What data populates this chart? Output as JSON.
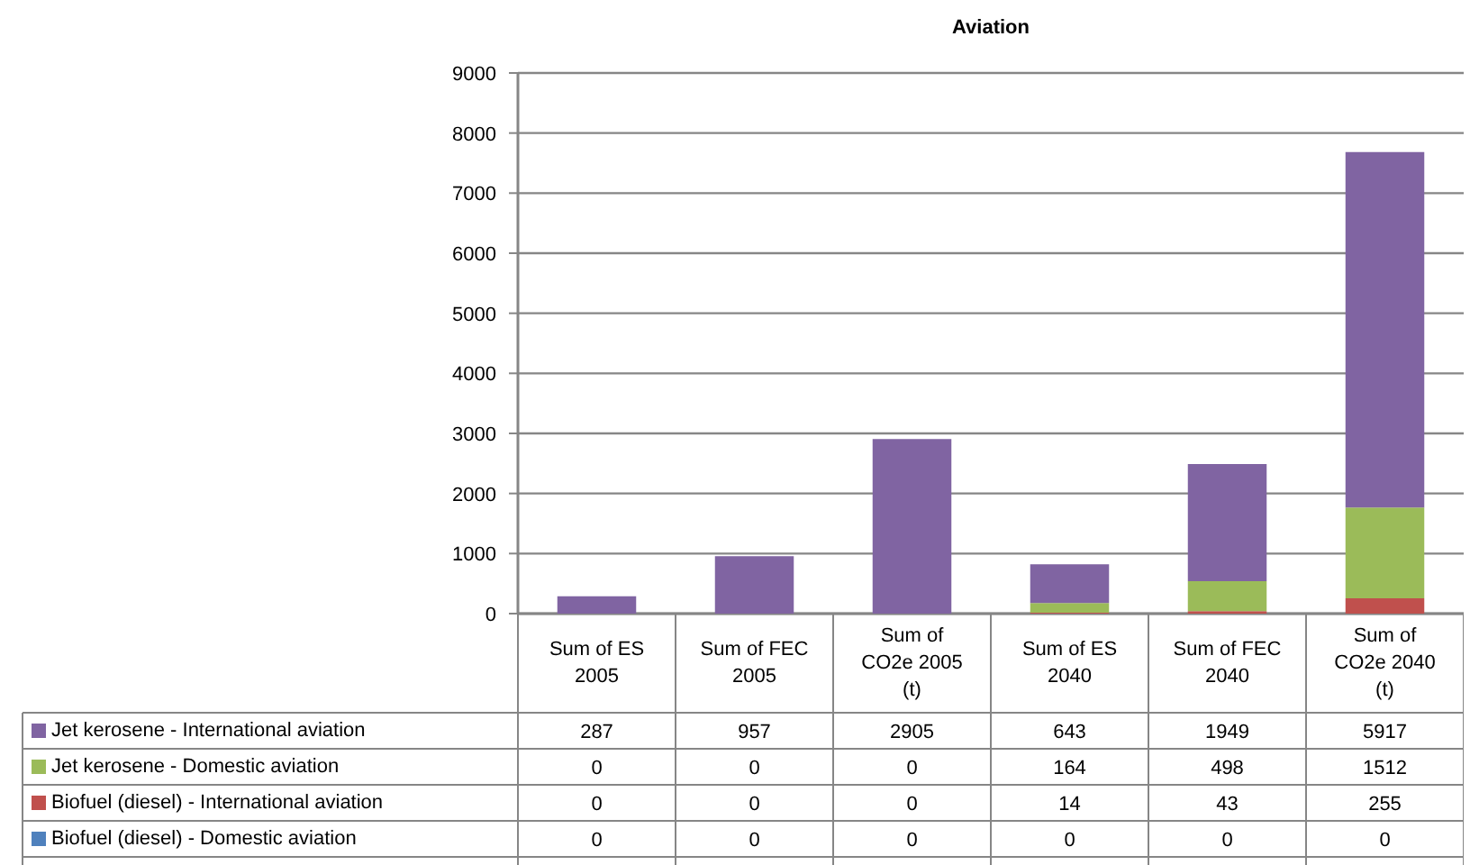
{
  "chart_data": {
    "type": "bar",
    "title": "Aviation",
    "stacked": true,
    "categories": [
      "Sum of ES 2005",
      "Sum of FEC 2005",
      "Sum of CO2e 2005 (t)",
      "Sum of ES 2040",
      "Sum of FEC 2040",
      "Sum of CO2e 2040 (t)"
    ],
    "series": [
      {
        "name": "Biofuel (diesel) - Domestic aviation",
        "color": "#4f81bd",
        "values": [
          0,
          0,
          0,
          0,
          0,
          0
        ]
      },
      {
        "name": "Biofuel (diesel) - International aviation",
        "color": "#c0504d",
        "values": [
          0,
          0,
          0,
          14,
          43,
          255
        ]
      },
      {
        "name": "Jet kerosene - Domestic aviation",
        "color": "#9bbb59",
        "values": [
          0,
          0,
          0,
          164,
          498,
          1512
        ]
      },
      {
        "name": "Jet kerosene - International aviation",
        "color": "#8064a2",
        "values": [
          287,
          957,
          2905,
          643,
          1949,
          5917
        ]
      }
    ],
    "ylim": [
      0,
      9000
    ],
    "yticks": [
      0,
      1000,
      2000,
      3000,
      4000,
      5000,
      6000,
      7000,
      8000,
      9000
    ],
    "grid": "y",
    "legend": "bottom",
    "data_labels": true,
    "tick_labels": "y"
  }
}
